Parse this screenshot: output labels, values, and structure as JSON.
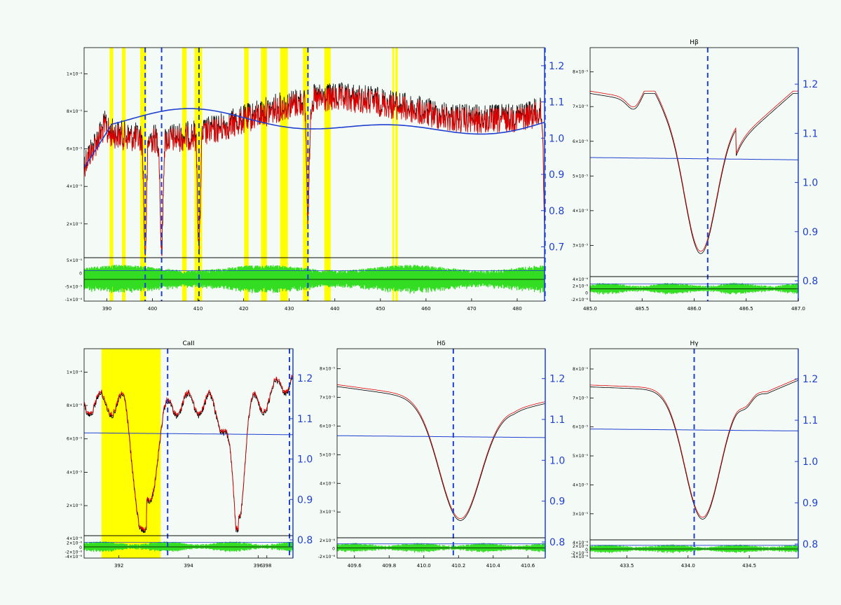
{
  "colors": {
    "background": "#f4fbf7",
    "axes": "#000000",
    "observed": "#000000",
    "model": "#e00000",
    "continuum": "#1f3fd0",
    "right_axis": "#1f3fd0",
    "line_markers": "#1f3fd0",
    "masks": "#ffff00",
    "residuals": "#33dd22"
  },
  "chart_data": [
    {
      "type": "line",
      "panel": "full-spectrum",
      "title": "",
      "xlim": [
        385,
        486
      ],
      "x_ticks": [
        "390",
        "400",
        "410",
        "420",
        "430",
        "440",
        "450",
        "460",
        "470",
        "480"
      ],
      "y_ticks": [
        "2×10⁻⁵",
        "4×10⁻⁵",
        "6×10⁻⁵",
        "8×10⁻⁵",
        "1×10⁻⁴"
      ],
      "y2_ticks": [
        "0.7",
        "0.8",
        "0.9",
        "1.0",
        "1.1",
        "1.2"
      ],
      "res_ticks": [
        "5×10⁻⁵",
        "0",
        "-5×10⁻⁵",
        "-1×10⁻⁴"
      ],
      "mask_bands": [
        [
          390.6,
          391.4
        ],
        [
          393.3,
          394.1
        ],
        [
          397.3,
          398.6
        ],
        [
          406.5,
          407.5
        ],
        [
          409.2,
          410.9
        ],
        [
          420.1,
          421.1
        ],
        [
          423.8,
          425.1
        ],
        [
          428.0,
          429.7
        ],
        [
          433.0,
          434.3
        ],
        [
          437.7,
          439.1
        ],
        [
          452.6,
          453.0
        ],
        [
          453.3,
          453.8
        ]
      ],
      "line_markers": [
        398.4,
        402.0,
        410.2,
        434.1,
        486.1
      ]
    },
    {
      "type": "line",
      "panel": "Hb",
      "title": "Hβ",
      "xlim": [
        485.0,
        487.0
      ],
      "x_ticks": [
        "485.0",
        "485.5",
        "486.0",
        "486.5",
        "487.0"
      ],
      "y_ticks": [
        "3×10⁻⁵",
        "4×10⁻⁵",
        "5×10⁻⁵",
        "6×10⁻⁵",
        "7×10⁻⁵",
        "8×10⁻⁵"
      ],
      "y2_ticks": [
        "0.8",
        "0.9",
        "1.0",
        "1.1",
        "1.2"
      ],
      "res_ticks": [
        "4×10⁻⁶",
        "2×10⁻⁶",
        "0",
        "-2×10⁻⁶"
      ],
      "line_markers": [
        486.13
      ]
    },
    {
      "type": "line",
      "panel": "CaII",
      "title": "CaII",
      "xlim": [
        391.0,
        397.0
      ],
      "x_ticks": [
        "392",
        "394",
        "396",
        "398"
      ],
      "y_ticks": [
        "2×10⁻⁵",
        "4×10⁻⁵",
        "6×10⁻⁵",
        "8×10⁻⁵",
        "1×10⁻⁴"
      ],
      "y2_ticks": [
        "0.8",
        "0.9",
        "1.0",
        "1.1",
        "1.2"
      ],
      "res_ticks": [
        "4×10⁻⁶",
        "2×10⁻⁶",
        "0",
        "-2×10⁻⁶",
        "-4×10⁻⁶"
      ],
      "mask_bands": [
        [
          391.5,
          393.2
        ]
      ],
      "line_markers": [
        393.4,
        396.9
      ]
    },
    {
      "type": "line",
      "panel": "Hd",
      "title": "Hδ",
      "xlim": [
        409.5,
        410.7
      ],
      "x_ticks": [
        "409.6",
        "409.8",
        "410.0",
        "410.2",
        "410.4",
        "410.6"
      ],
      "y_ticks": [
        "3×10⁻⁵",
        "4×10⁻⁵",
        "5×10⁻⁵",
        "6×10⁻⁵",
        "7×10⁻⁵",
        "8×10⁻⁵"
      ],
      "y2_ticks": [
        "0.8",
        "0.9",
        "1.0",
        "1.1",
        "1.2"
      ],
      "res_ticks": [
        "2×10⁻⁶",
        "0",
        "-2×10⁻⁶"
      ],
      "line_markers": [
        410.17
      ]
    },
    {
      "type": "line",
      "panel": "Hg",
      "title": "Hγ",
      "xlim": [
        433.2,
        434.9
      ],
      "x_ticks": [
        "433.5",
        "434.0",
        "434.5"
      ],
      "y_ticks": [
        "3×10⁻⁵",
        "4×10⁻⁵",
        "5×10⁻⁵",
        "6×10⁻⁵",
        "7×10⁻⁵",
        "8×10⁻⁵"
      ],
      "y2_ticks": [
        "0.8",
        "0.9",
        "1.0",
        "1.1",
        "1.2"
      ],
      "res_ticks": [
        "4×10⁻⁶",
        "2×10⁻⁶",
        "0",
        "-2×10⁻⁶",
        "-4×10⁻⁶"
      ],
      "line_markers": [
        434.05
      ]
    }
  ]
}
